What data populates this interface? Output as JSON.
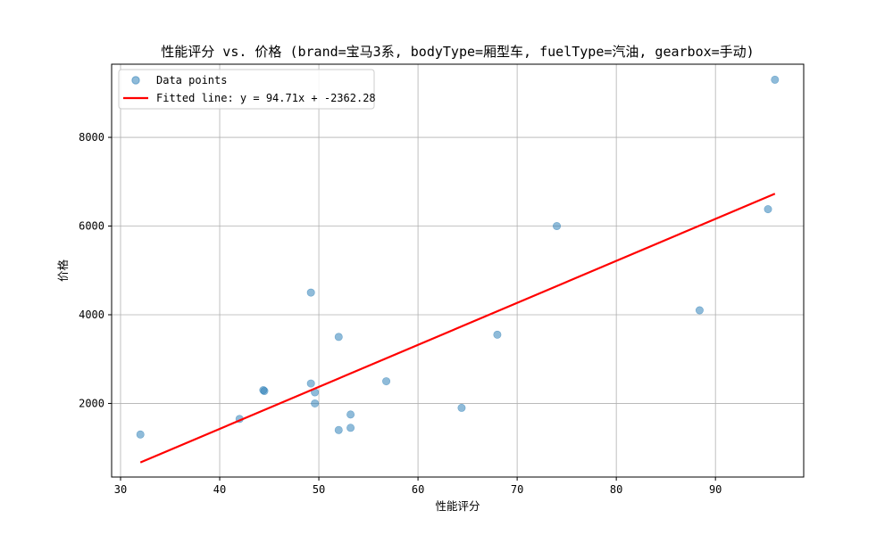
{
  "chart_data": {
    "type": "scatter",
    "title": "性能评分 vs. 价格 (brand=宝马3系, bodyType=厢型车, fuelType=汽油, gearbox=手动)",
    "xlabel": "性能评分",
    "ylabel": "价格",
    "xlim": [
      29.1,
      98.9
    ],
    "ylim": [
      340,
      9650
    ],
    "xticks": [
      30,
      40,
      50,
      60,
      70,
      80,
      90
    ],
    "yticks": [
      2000,
      4000,
      6000,
      8000
    ],
    "grid": true,
    "legend_position": "top-left",
    "series": [
      {
        "name": "Data points",
        "kind": "scatter",
        "color": "#1f77b4",
        "points": [
          {
            "x": 32.0,
            "y": 1300
          },
          {
            "x": 42.0,
            "y": 1650
          },
          {
            "x": 44.4,
            "y": 2300
          },
          {
            "x": 44.5,
            "y": 2280
          },
          {
            "x": 49.2,
            "y": 4500
          },
          {
            "x": 49.2,
            "y": 2450
          },
          {
            "x": 49.6,
            "y": 2250
          },
          {
            "x": 49.6,
            "y": 2000
          },
          {
            "x": 52.0,
            "y": 3500
          },
          {
            "x": 52.0,
            "y": 1400
          },
          {
            "x": 53.2,
            "y": 1750
          },
          {
            "x": 53.2,
            "y": 1450
          },
          {
            "x": 56.8,
            "y": 2500
          },
          {
            "x": 64.4,
            "y": 1900
          },
          {
            "x": 68.0,
            "y": 3550
          },
          {
            "x": 74.0,
            "y": 6000
          },
          {
            "x": 88.4,
            "y": 4100
          },
          {
            "x": 95.3,
            "y": 6380
          },
          {
            "x": 96.0,
            "y": 9300
          }
        ]
      },
      {
        "name": "Fitted line: y = 94.71x + -2362.28",
        "kind": "line",
        "color": "#ff0000",
        "slope": 94.71,
        "intercept": -2362.28,
        "x_range": [
          32.0,
          96.0
        ]
      }
    ]
  }
}
